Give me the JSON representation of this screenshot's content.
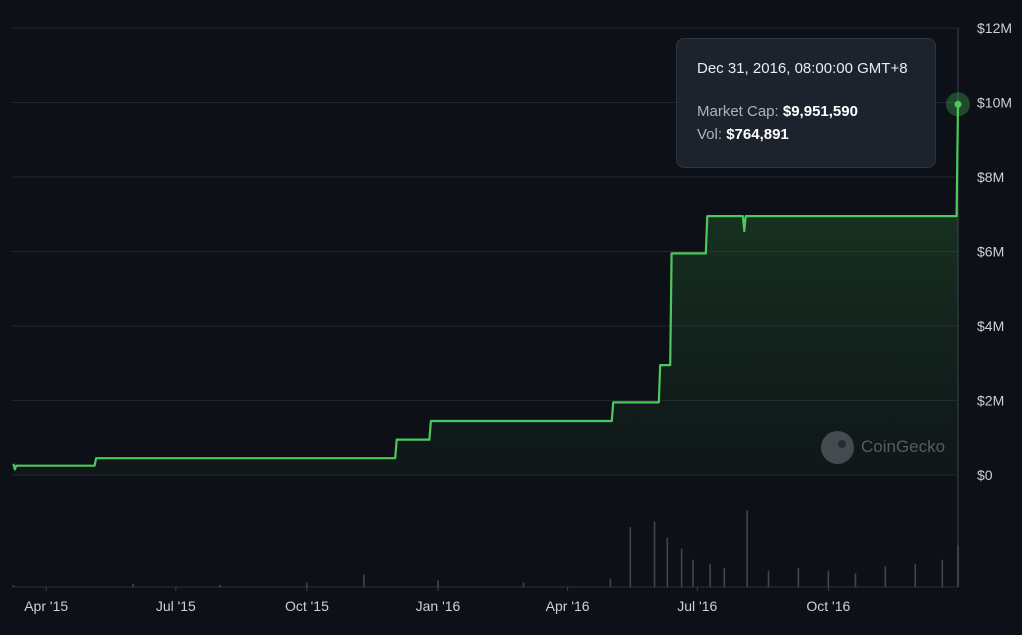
{
  "chart_data": {
    "type": "area",
    "title": "",
    "xlabel": "",
    "ylabel": "",
    "ylim": [
      0,
      12000000
    ],
    "y_ticks": [
      "$12M",
      "$10M",
      "$8M",
      "$6M",
      "$4M",
      "$2M",
      "$0"
    ],
    "x_ticks": [
      "Apr '15",
      "Jul '15",
      "Oct '15",
      "Jan '16",
      "Apr '16",
      "Jul '16",
      "Oct '16"
    ],
    "grid": true,
    "series": [
      {
        "values_description_type": "stepped market cap (USD)",
        "x": [
          "2015-03-09",
          "2015-03-10",
          "2015-03-11",
          "2015-05-05",
          "2015-05-06",
          "2015-12-02",
          "2015-12-03",
          "2015-12-26",
          "2015-12-27",
          "2016-05-02",
          "2016-05-03",
          "2016-06-04",
          "2016-06-05",
          "2016-06-12",
          "2016-06-13",
          "2016-07-07",
          "2016-07-08",
          "2016-08-02",
          "2016-08-03",
          "2016-08-04",
          "2016-12-30",
          "2016-12-31"
        ],
        "values": [
          300000,
          150000,
          250000,
          250000,
          450000,
          450000,
          950000,
          950000,
          1450000,
          1450000,
          1950000,
          1950000,
          2950000,
          2950000,
          5950000,
          5950000,
          6950000,
          6950000,
          6550000,
          6950000,
          6950000,
          9951590
        ]
      }
    ],
    "volume_series": {
      "x": [
        "2015-03-09",
        "2015-06-01",
        "2015-08-01",
        "2015-10-01",
        "2015-11-10",
        "2016-01-01",
        "2016-03-01",
        "2016-05-01",
        "2016-05-15",
        "2016-06-01",
        "2016-06-10",
        "2016-06-20",
        "2016-06-28",
        "2016-07-10",
        "2016-07-20",
        "2016-08-05",
        "2016-08-20",
        "2016-09-10",
        "2016-10-01",
        "2016-10-20",
        "2016-11-10",
        "2016-12-01",
        "2016-12-20",
        "2016-12-31"
      ],
      "values": [
        30000,
        60000,
        40000,
        80000,
        230000,
        120000,
        80000,
        150000,
        1100000,
        1200000,
        900000,
        700000,
        500000,
        420000,
        350000,
        1400000,
        300000,
        350000,
        300000,
        250000,
        380000,
        420000,
        500000,
        764891
      ]
    },
    "tooltip": {
      "date": "Dec 31, 2016, 08:00:00 GMT+8",
      "market_cap_label": "Market Cap:",
      "market_cap_value": "$9,951,590",
      "vol_label": "Vol:",
      "vol_value": "$764,891"
    },
    "line_color": "#4cc95a",
    "watermark": "CoinGecko"
  }
}
